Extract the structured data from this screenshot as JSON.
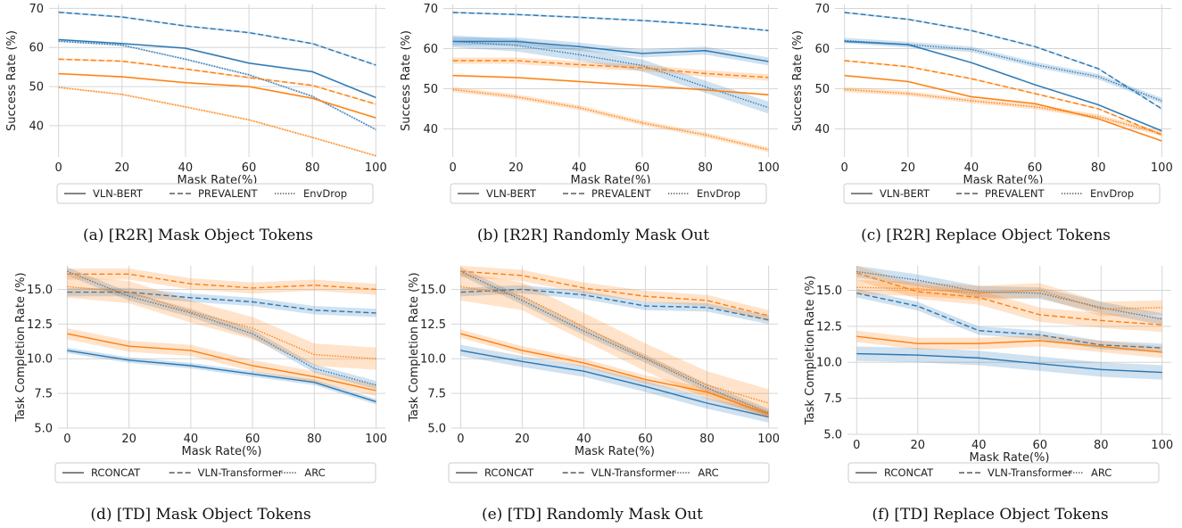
{
  "colors": {
    "blue": "#2a77b4",
    "orange": "#ff7f0e",
    "grid": "#d6d6d6"
  },
  "chart_data": [
    {
      "id": "a",
      "type": "line",
      "caption": "(a) [R2R] Mask Object Tokens",
      "xlabel": "Mask Rate(%)",
      "ylabel": "Success Rate (%)",
      "x": [
        0,
        20,
        40,
        60,
        80,
        100
      ],
      "xlim": [
        -3,
        103
      ],
      "ylim": [
        32,
        71
      ],
      "yticks": [
        40,
        50,
        60,
        70
      ],
      "ytick_labels": [
        "40",
        "50",
        "60",
        "70"
      ],
      "legend": [
        "VLN-BERT",
        "PREVALENT",
        "EnvDrop"
      ],
      "series": [
        {
          "model": "VLN-BERT",
          "color": "blue",
          "style": "solid",
          "values": [
            62,
            61,
            59.8,
            56,
            53.8,
            47.2
          ]
        },
        {
          "model": "PREVALENT",
          "color": "blue",
          "style": "dashed",
          "values": [
            69,
            67.8,
            65.5,
            63.8,
            61,
            55.5
          ]
        },
        {
          "model": "EnvDrop",
          "color": "blue",
          "style": "dotted",
          "values": [
            61.6,
            60.6,
            57,
            53,
            47.5,
            39
          ]
        },
        {
          "model": "VLN-BERT",
          "color": "orange",
          "style": "solid",
          "values": [
            53.3,
            52.5,
            51,
            50,
            47,
            42
          ]
        },
        {
          "model": "PREVALENT",
          "color": "orange",
          "style": "dashed",
          "values": [
            57,
            56.5,
            54.5,
            52.3,
            50.3,
            45.5
          ]
        },
        {
          "model": "EnvDrop",
          "color": "orange",
          "style": "dotted",
          "values": [
            49.8,
            48,
            44.8,
            41.5,
            37,
            32.3
          ]
        }
      ]
    },
    {
      "id": "b",
      "type": "line",
      "caption": "(b) [R2R] Randomly Mask Out",
      "xlabel": "Mask Rate(%)",
      "ylabel": "Success Rate (%)",
      "x": [
        0,
        20,
        40,
        60,
        80,
        100
      ],
      "xlim": [
        -3,
        103
      ],
      "ylim": [
        33,
        71
      ],
      "yticks": [
        40,
        50,
        60,
        70
      ],
      "ytick_labels": [
        "40",
        "50",
        "60",
        "70"
      ],
      "legend": [
        "VLN-BERT",
        "PREVALENT",
        "EnvDrop"
      ],
      "series": [
        {
          "model": "VLN-BERT",
          "color": "blue",
          "style": "solid",
          "values": [
            61.8,
            61.8,
            60.5,
            58.8,
            59.5,
            56.8
          ],
          "band": 1.0
        },
        {
          "model": "PREVALENT",
          "color": "blue",
          "style": "dashed",
          "values": [
            69,
            68.5,
            67.8,
            67,
            66,
            64.5
          ]
        },
        {
          "model": "EnvDrop",
          "color": "blue",
          "style": "dotted",
          "values": [
            61.8,
            60.8,
            58.5,
            55.8,
            50.5,
            45.3
          ],
          "band": 1.5
        },
        {
          "model": "VLN-BERT",
          "color": "orange",
          "style": "solid",
          "values": [
            53.3,
            52.8,
            51.8,
            50.8,
            49.7,
            48.5
          ]
        },
        {
          "model": "PREVALENT",
          "color": "orange",
          "style": "dashed",
          "values": [
            57,
            57,
            56,
            55.2,
            53.8,
            52.8
          ],
          "band": 0.8
        },
        {
          "model": "EnvDrop",
          "color": "orange",
          "style": "dotted",
          "values": [
            49.8,
            48,
            45.3,
            41.5,
            38.5,
            34.8
          ],
          "band": 0.6
        }
      ]
    },
    {
      "id": "c",
      "type": "line",
      "caption": "(c) [R2R] Replace Object Tokens",
      "xlabel": "Mask Rate(%)",
      "ylabel": "Success Rate (%)",
      "x": [
        0,
        20,
        40,
        60,
        80,
        100
      ],
      "xlim": [
        -3,
        103
      ],
      "ylim": [
        33,
        71
      ],
      "yticks": [
        40,
        50,
        60,
        70
      ],
      "ytick_labels": [
        "40",
        "50",
        "60",
        "70"
      ],
      "legend": [
        "VLN-BERT",
        "PREVALENT",
        "EnvDrop"
      ],
      "series": [
        {
          "model": "VLN-BERT",
          "color": "blue",
          "style": "solid",
          "values": [
            61.8,
            61,
            56.5,
            51,
            46,
            39.5
          ]
        },
        {
          "model": "PREVALENT",
          "color": "blue",
          "style": "dashed",
          "values": [
            69,
            67.3,
            64.5,
            60.5,
            55,
            45
          ]
        },
        {
          "model": "EnvDrop",
          "color": "blue",
          "style": "dotted",
          "values": [
            62,
            61,
            59.8,
            56,
            53,
            47
          ],
          "band": 0.7
        },
        {
          "model": "VLN-BERT",
          "color": "orange",
          "style": "solid",
          "values": [
            53.3,
            51.8,
            48,
            46.3,
            42.5,
            37
          ]
        },
        {
          "model": "PREVALENT",
          "color": "orange",
          "style": "dashed",
          "values": [
            57,
            55.5,
            52.5,
            48.8,
            45,
            38.5
          ]
        },
        {
          "model": "EnvDrop",
          "color": "orange",
          "style": "dotted",
          "values": [
            49.8,
            48.8,
            47,
            45.5,
            43,
            38.8
          ],
          "band": 0.6
        }
      ]
    },
    {
      "id": "d",
      "type": "line",
      "caption": "(d) [TD] Mask Object Tokens",
      "xlabel": "Mask Rate(%)",
      "ylabel": "Task Completion Rate (%)",
      "x": [
        0,
        20,
        40,
        60,
        80,
        100
      ],
      "xlim": [
        -3,
        103
      ],
      "ylim": [
        5,
        16.7
      ],
      "yticks": [
        5,
        7.5,
        10,
        12.5,
        15
      ],
      "ytick_labels": [
        "5.0",
        "7.5",
        "10.0",
        "12.5",
        "15.0"
      ],
      "legend": [
        "RCONCAT",
        "VLN-Transformer",
        "ARC"
      ],
      "series": [
        {
          "model": "RCONCAT",
          "color": "blue",
          "style": "solid",
          "values": [
            10.6,
            9.9,
            9.5,
            8.9,
            8.3,
            6.9
          ],
          "band": 0.2
        },
        {
          "model": "VLN-Transformer",
          "color": "blue",
          "style": "dashed",
          "values": [
            14.8,
            14.8,
            14.4,
            14.1,
            13.5,
            13.3
          ],
          "band": 0.3
        },
        {
          "model": "ARC",
          "color": "blue",
          "style": "dotted",
          "values": [
            16.3,
            14.5,
            13.3,
            11.8,
            9.3,
            8.1
          ],
          "band": 0.3
        },
        {
          "model": "RCONCAT",
          "color": "orange",
          "style": "solid",
          "values": [
            11.8,
            10.9,
            10.6,
            9.5,
            8.7,
            7.7
          ],
          "band": 0.4
        },
        {
          "model": "VLN-Transformer",
          "color": "orange",
          "style": "dashed",
          "values": [
            16.1,
            16.1,
            15.4,
            15.1,
            15.3,
            15
          ],
          "band": 0.4
        },
        {
          "model": "ARC",
          "color": "orange",
          "style": "dotted",
          "values": [
            15.2,
            14.8,
            13.4,
            12.2,
            10.3,
            10
          ],
          "band": 0.8
        }
      ]
    },
    {
      "id": "e",
      "type": "line",
      "caption": "(e) [TD] Randomly Mask Out",
      "xlabel": "Mask Rate(%)",
      "ylabel": "Task Completion Rate (%)",
      "x": [
        0,
        20,
        40,
        60,
        80,
        100
      ],
      "xlim": [
        -3,
        103
      ],
      "ylim": [
        5,
        16.7
      ],
      "yticks": [
        5,
        7.5,
        10,
        12.5,
        15
      ],
      "ytick_labels": [
        "5.0",
        "7.5",
        "10.0",
        "12.5",
        "15.0"
      ],
      "legend": [
        "RCONCAT",
        "VLN-Transformer",
        "ARC"
      ],
      "series": [
        {
          "model": "RCONCAT",
          "color": "blue",
          "style": "solid",
          "values": [
            10.6,
            9.8,
            9.1,
            8,
            6.8,
            5.8
          ],
          "band": 0.4
        },
        {
          "model": "VLN-Transformer",
          "color": "blue",
          "style": "dashed",
          "values": [
            14.8,
            15,
            14.6,
            13.8,
            13.7,
            12.8
          ],
          "band": 0.3
        },
        {
          "model": "ARC",
          "color": "blue",
          "style": "dotted",
          "values": [
            16.3,
            14.2,
            12,
            10,
            7.9,
            6.1
          ],
          "band": 0.3
        },
        {
          "model": "RCONCAT",
          "color": "orange",
          "style": "solid",
          "values": [
            11.8,
            10.6,
            9.7,
            8.5,
            7.6,
            6
          ],
          "band": 0.3
        },
        {
          "model": "VLN-Transformer",
          "color": "orange",
          "style": "dashed",
          "values": [
            16.3,
            16,
            15.1,
            14.5,
            14.2,
            13.1
          ],
          "band": 0.4
        },
        {
          "model": "ARC",
          "color": "orange",
          "style": "dotted",
          "values": [
            15.2,
            14.5,
            12.3,
            10.1,
            8.1,
            6.8
          ],
          "band": 1.0
        }
      ]
    },
    {
      "id": "f",
      "type": "line",
      "caption": "(f) [TD] Replace Object Tokens",
      "xlabel": "Mask Rate(%)",
      "ylabel": "Task Completion Rate (%)",
      "x": [
        0,
        20,
        40,
        60,
        80,
        100
      ],
      "xlim": [
        -3,
        103
      ],
      "ylim": [
        5,
        16.7
      ],
      "yticks": [
        5,
        7.5,
        10,
        12.5,
        15
      ],
      "ytick_labels": [
        "5.0",
        "7.5",
        "10.0",
        "12.5",
        "15.0"
      ],
      "legend": [
        "RCONCAT",
        "VLN-Transformer",
        "ARC"
      ],
      "series": [
        {
          "model": "RCONCAT",
          "color": "blue",
          "style": "solid",
          "values": [
            10.6,
            10.5,
            10.3,
            9.9,
            9.5,
            9.3
          ],
          "band": 0.5
        },
        {
          "model": "VLN-Transformer",
          "color": "blue",
          "style": "dashed",
          "values": [
            14.8,
            13.9,
            12.2,
            11.9,
            11.2,
            11
          ],
          "band": 0.3
        },
        {
          "model": "ARC",
          "color": "blue",
          "style": "dotted",
          "values": [
            16.3,
            15.7,
            14.9,
            14.8,
            13.8,
            13
          ],
          "band": 0.4
        },
        {
          "model": "RCONCAT",
          "color": "orange",
          "style": "solid",
          "values": [
            11.8,
            11.3,
            11.3,
            11.5,
            11.1,
            10.7
          ],
          "band": 0.4
        },
        {
          "model": "VLN-Transformer",
          "color": "orange",
          "style": "dashed",
          "values": [
            16.2,
            14.9,
            14.5,
            13.3,
            12.9,
            12.6
          ],
          "band": 0.5
        },
        {
          "model": "ARC",
          "color": "orange",
          "style": "dotted",
          "values": [
            15.2,
            15.1,
            14.8,
            15,
            13.7,
            13.8
          ],
          "band": 0.5
        }
      ]
    }
  ]
}
